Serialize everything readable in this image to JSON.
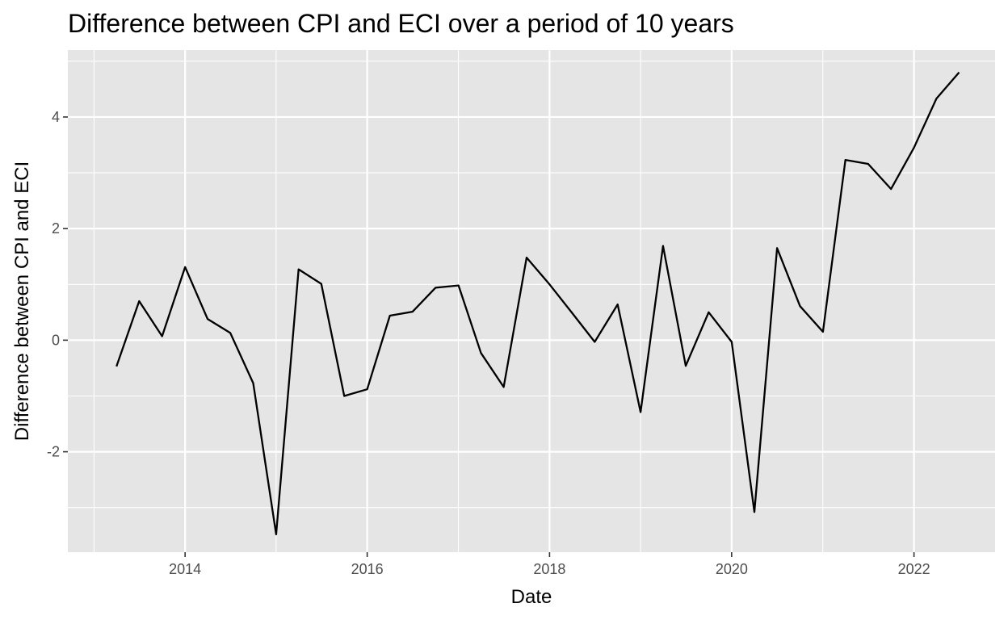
{
  "chart_data": {
    "type": "line",
    "title": "Difference between CPI and ECI over a period of 10 years",
    "xlabel": "Date",
    "ylabel": "Difference between CPI and ECI",
    "xlim": [
      "2012-09-18",
      "2022-11-22"
    ],
    "ylim": [
      -3.8,
      5.2
    ],
    "x_major_ticks": [
      "2014-01-01",
      "2016-01-01",
      "2018-01-01",
      "2020-01-01",
      "2022-01-01"
    ],
    "x_tick_labels": [
      "2014",
      "2016",
      "2018",
      "2020",
      "2022"
    ],
    "y_major_ticks": [
      -2,
      0,
      2,
      4
    ],
    "y_tick_labels": [
      "-2",
      "0",
      "2",
      "4"
    ],
    "y_minor_ticks": [
      -3,
      -1,
      1,
      3,
      5
    ],
    "grid": true,
    "background": "#e5e5e5",
    "line_color": "#000000",
    "x": [
      "2013-04-01",
      "2013-07-01",
      "2013-10-01",
      "2014-01-01",
      "2014-04-01",
      "2014-07-01",
      "2014-10-01",
      "2015-01-01",
      "2015-04-01",
      "2015-07-01",
      "2015-10-01",
      "2016-01-01",
      "2016-04-01",
      "2016-07-01",
      "2016-10-01",
      "2017-01-01",
      "2017-04-01",
      "2017-07-01",
      "2017-10-01",
      "2018-01-01",
      "2018-04-01",
      "2018-07-01",
      "2018-10-01",
      "2019-01-01",
      "2019-04-01",
      "2019-07-01",
      "2019-10-01",
      "2020-01-01",
      "2020-04-01",
      "2020-07-01",
      "2020-10-01",
      "2021-01-01",
      "2021-04-01",
      "2021-07-01",
      "2021-10-01",
      "2022-01-01",
      "2022-04-01",
      "2022-07-01"
    ],
    "values": [
      -0.47,
      0.7,
      0.07,
      1.31,
      0.38,
      0.13,
      -0.77,
      -3.48,
      1.27,
      1.01,
      -1.0,
      -0.88,
      0.44,
      0.51,
      0.94,
      0.98,
      -0.23,
      -0.84,
      1.48,
      1.0,
      0.49,
      -0.03,
      0.64,
      -1.29,
      1.69,
      -0.46,
      0.5,
      -0.03,
      -3.08,
      1.65,
      0.61,
      0.15,
      3.23,
      3.16,
      2.71,
      3.45,
      4.33,
      4.8
    ]
  }
}
